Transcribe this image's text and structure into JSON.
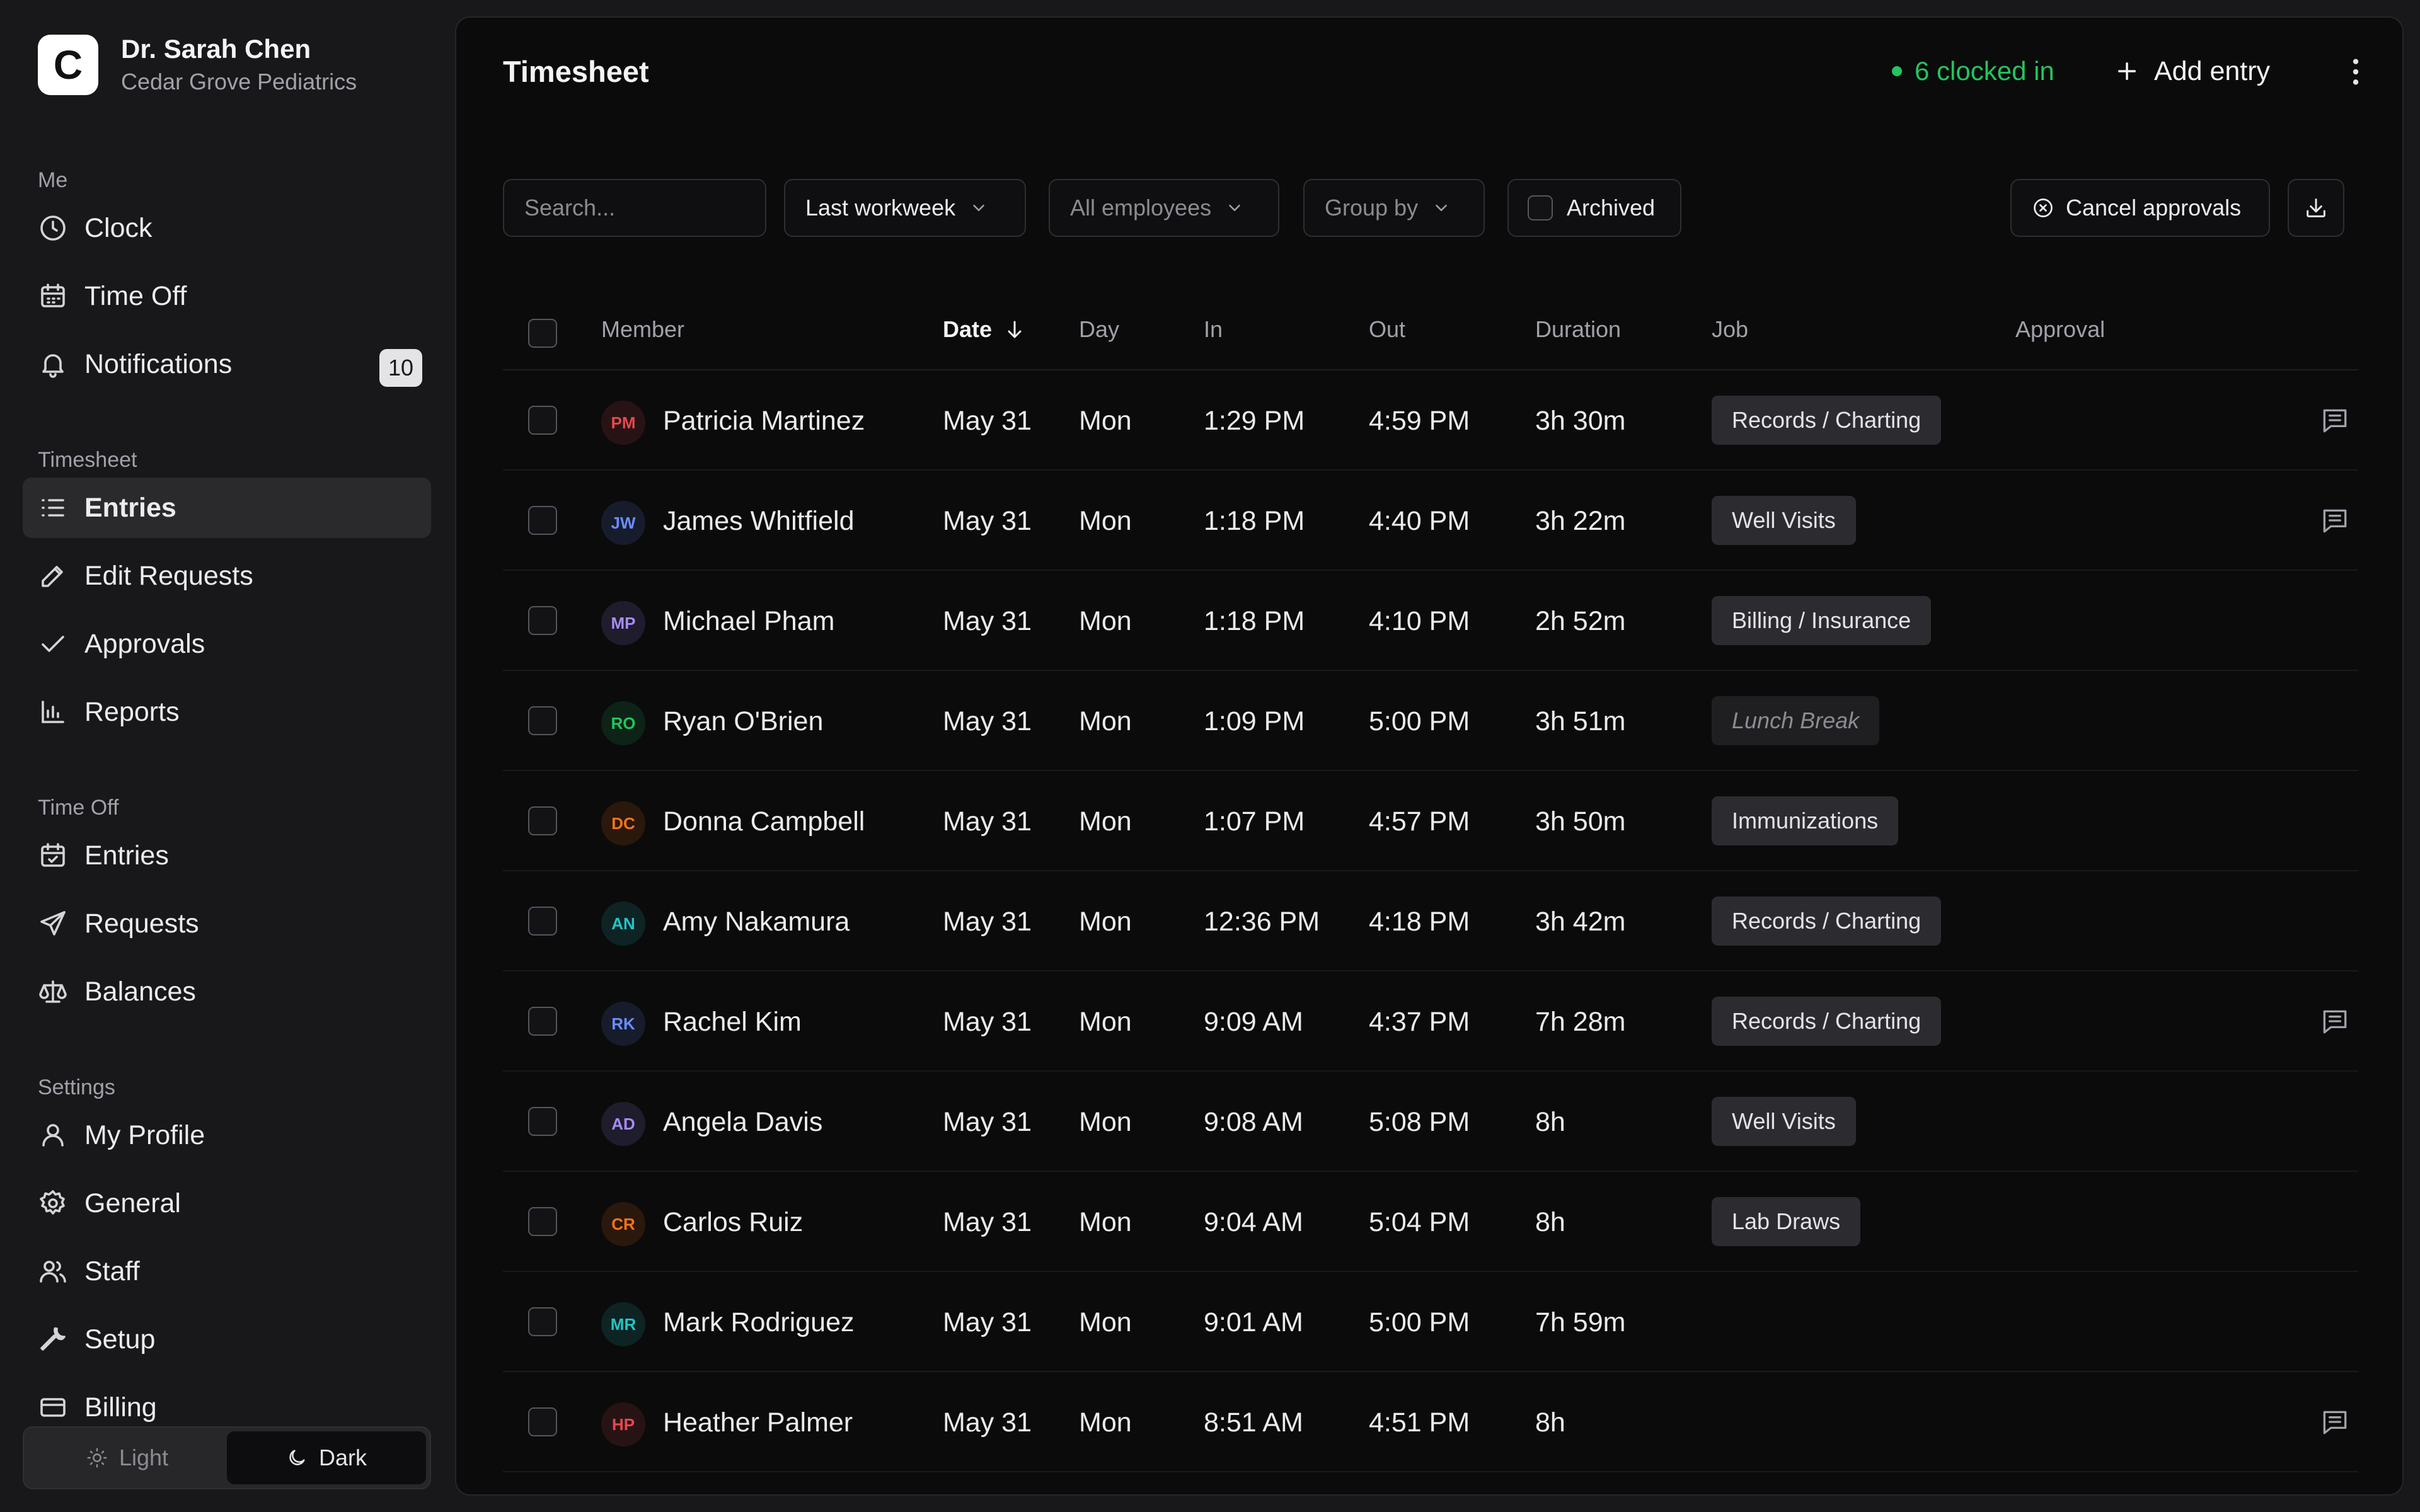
{
  "org": {
    "logo_letter": "C",
    "name": "Dr. Sarah Chen",
    "subtitle": "Cedar Grove Pediatrics"
  },
  "sidebar": {
    "me": {
      "heading": "Me",
      "items": [
        {
          "label": "Clock",
          "icon": "clock-icon"
        },
        {
          "label": "Time Off",
          "icon": "calendar-icon"
        },
        {
          "label": "Notifications",
          "icon": "bell-icon",
          "badge": "10"
        }
      ]
    },
    "timesheet": {
      "heading": "Timesheet",
      "items": [
        {
          "label": "Entries",
          "icon": "list-icon",
          "active": true
        },
        {
          "label": "Edit Requests",
          "icon": "pencil-icon"
        },
        {
          "label": "Approvals",
          "icon": "check-icon"
        },
        {
          "label": "Reports",
          "icon": "bar-chart-icon"
        }
      ]
    },
    "timeoff": {
      "heading": "Time Off",
      "items": [
        {
          "label": "Entries",
          "icon": "calendar-check-icon"
        },
        {
          "label": "Requests",
          "icon": "send-icon"
        },
        {
          "label": "Balances",
          "icon": "scale-icon"
        }
      ]
    },
    "settings": {
      "heading": "Settings",
      "items": [
        {
          "label": "My Profile",
          "icon": "user-icon"
        },
        {
          "label": "General",
          "icon": "gear-icon"
        },
        {
          "label": "Staff",
          "icon": "users-icon"
        },
        {
          "label": "Setup",
          "icon": "wrench-icon"
        },
        {
          "label": "Billing",
          "icon": "card-icon"
        }
      ]
    },
    "theme": {
      "light_label": "Light",
      "dark_label": "Dark",
      "selected": "Dark"
    }
  },
  "header": {
    "title": "Timesheet",
    "clocked_in": "6 clocked in",
    "add_entry": "Add entry"
  },
  "toolbar": {
    "search_placeholder": "Search...",
    "range": "Last workweek",
    "employees": "All employees",
    "group_by": "Group by",
    "archived": "Archived",
    "cancel_approvals": "Cancel approvals"
  },
  "table": {
    "columns": {
      "member": "Member",
      "date": "Date",
      "day": "Day",
      "in": "In",
      "out": "Out",
      "duration": "Duration",
      "job": "Job",
      "approval": "Approval"
    },
    "rows": [
      {
        "initials": "PM",
        "name": "Patricia Martinez",
        "date": "May 31",
        "day": "Mon",
        "in": "1:29 PM",
        "out": "4:59 PM",
        "duration": "3h 30m",
        "job": "Records / Charting",
        "note": true,
        "color": "#e5484d"
      },
      {
        "initials": "JW",
        "name": "James Whitfield",
        "date": "May 31",
        "day": "Mon",
        "in": "1:18 PM",
        "out": "4:40 PM",
        "duration": "3h 22m",
        "job": "Well Visits",
        "note": true,
        "color": "#6b8cff"
      },
      {
        "initials": "MP",
        "name": "Michael Pham",
        "date": "May 31",
        "day": "Mon",
        "in": "1:18 PM",
        "out": "4:10 PM",
        "duration": "2h 52m",
        "job": "Billing / Insurance",
        "note": false,
        "color": "#a78bfa"
      },
      {
        "initials": "RO",
        "name": "Ryan O'Brien",
        "date": "May 31",
        "day": "Mon",
        "in": "1:09 PM",
        "out": "5:00 PM",
        "duration": "3h 51m",
        "job": "Lunch Break",
        "job_italic": true,
        "note": false,
        "color": "#22c55e"
      },
      {
        "initials": "DC",
        "name": "Donna Campbell",
        "date": "May 31",
        "day": "Mon",
        "in": "1:07 PM",
        "out": "4:57 PM",
        "duration": "3h 50m",
        "job": "Immunizations",
        "note": false,
        "color": "#f97316"
      },
      {
        "initials": "AN",
        "name": "Amy Nakamura",
        "date": "May 31",
        "day": "Mon",
        "in": "12:36 PM",
        "out": "4:18 PM",
        "duration": "3h 42m",
        "job": "Records / Charting",
        "note": false,
        "color": "#22c5c5"
      },
      {
        "initials": "RK",
        "name": "Rachel Kim",
        "date": "May 31",
        "day": "Mon",
        "in": "9:09 AM",
        "out": "4:37 PM",
        "duration": "7h 28m",
        "job": "Records / Charting",
        "note": true,
        "color": "#6b8cff"
      },
      {
        "initials": "AD",
        "name": "Angela Davis",
        "date": "May 31",
        "day": "Mon",
        "in": "9:08 AM",
        "out": "5:08 PM",
        "duration": "8h",
        "job": "Well Visits",
        "note": false,
        "color": "#a78bfa"
      },
      {
        "initials": "CR",
        "name": "Carlos Ruiz",
        "date": "May 31",
        "day": "Mon",
        "in": "9:04 AM",
        "out": "5:04 PM",
        "duration": "8h",
        "job": "Lab Draws",
        "note": false,
        "color": "#f97316"
      },
      {
        "initials": "MR",
        "name": "Mark Rodriguez",
        "date": "May 31",
        "day": "Mon",
        "in": "9:01 AM",
        "out": "5:00 PM",
        "duration": "7h 59m",
        "job": "",
        "note": false,
        "color": "#22c5c5"
      },
      {
        "initials": "HP",
        "name": "Heather Palmer",
        "date": "May 31",
        "day": "Mon",
        "in": "8:51 AM",
        "out": "4:51 PM",
        "duration": "8h",
        "job": "",
        "note": true,
        "color": "#e5484d"
      },
      {
        "initials": "",
        "name": "",
        "date": "",
        "day": "",
        "in": "",
        "out": "",
        "duration": "",
        "job": "",
        "note": false,
        "color": "#6b8cff"
      }
    ]
  }
}
